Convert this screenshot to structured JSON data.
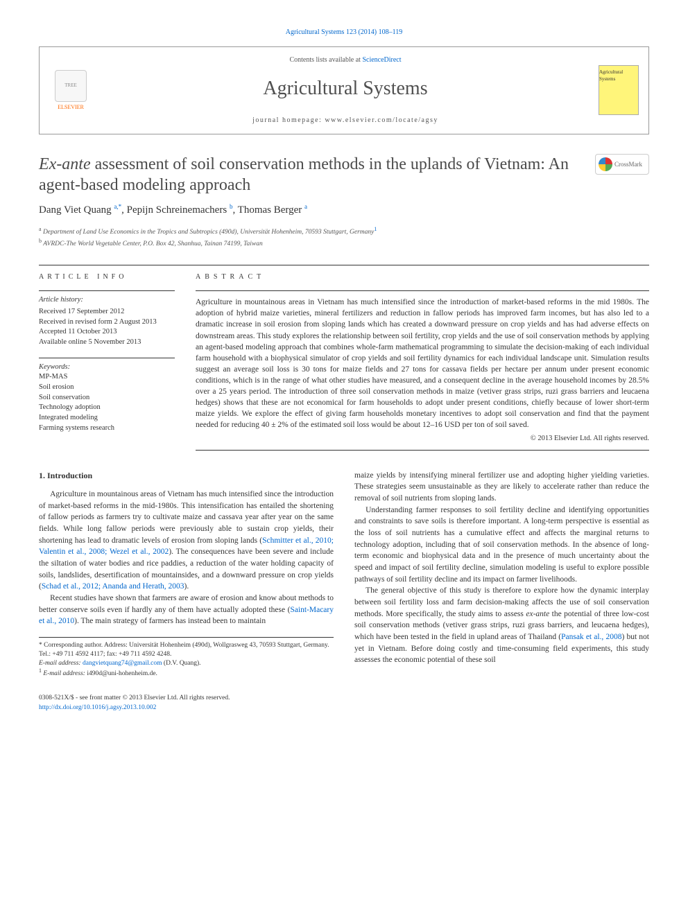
{
  "journal_ref": "Agricultural Systems 123 (2014) 108–119",
  "header": {
    "contents_prefix": "Contents lists available at ",
    "contents_link": "ScienceDirect",
    "journal_name": "Agricultural Systems",
    "homepage_prefix": "journal homepage: ",
    "homepage": "www.elsevier.com/locate/agsy",
    "elsevier_label": "ELSEVIER",
    "cover_label": "Agricultural Systems"
  },
  "crossmark_label": "CrossMark",
  "title_italic": "Ex-ante",
  "title_rest": " assessment of soil conservation methods in the uplands of Vietnam: An agent-based modeling approach",
  "authors": {
    "a1_name": "Dang Viet Quang",
    "a1_sup": "a,",
    "a1_star": "*",
    "a2_name": "Pepijn Schreinemachers",
    "a2_sup": "b",
    "a3_name": "Thomas Berger",
    "a3_sup": "a"
  },
  "affiliations": {
    "a": "Department of Land Use Economics in the Tropics and Subtropics (490d), Universität Hohenheim, 70593 Stuttgart, Germany",
    "a_end": "1",
    "b": "AVRDC-The World Vegetable Center, P.O. Box 42, Shanhua, Tainan 74199, Taiwan"
  },
  "info": {
    "heading": "ARTICLE INFO",
    "history_label": "Article history:",
    "received": "Received 17 September 2012",
    "revised": "Received in revised form 2 August 2013",
    "accepted": "Accepted 11 October 2013",
    "online": "Available online 5 November 2013",
    "keywords_label": "Keywords:",
    "kw1": "MP-MAS",
    "kw2": "Soil erosion",
    "kw3": "Soil conservation",
    "kw4": "Technology adoption",
    "kw5": "Integrated modeling",
    "kw6": "Farming systems research"
  },
  "abstract": {
    "heading": "ABSTRACT",
    "text": "Agriculture in mountainous areas in Vietnam has much intensified since the introduction of market-based reforms in the mid 1980s. The adoption of hybrid maize varieties, mineral fertilizers and reduction in fallow periods has improved farm incomes, but has also led to a dramatic increase in soil erosion from sloping lands which has created a downward pressure on crop yields and has had adverse effects on downstream areas. This study explores the relationship between soil fertility, crop yields and the use of soil conservation methods by applying an agent-based modeling approach that combines whole-farm mathematical programming to simulate the decision-making of each individual farm household with a biophysical simulator of crop yields and soil fertility dynamics for each individual landscape unit. Simulation results suggest an average soil loss is 30 tons for maize fields and 27 tons for cassava fields per hectare per annum under present economic conditions, which is in the range of what other studies have measured, and a consequent decline in the average household incomes by 28.5% over a 25 years period. The introduction of three soil conservation methods in maize (vetiver grass strips, ruzi grass barriers and leucaena hedges) shows that these are not economical for farm households to adopt under present conditions, chiefly because of lower short-term maize yields. We explore the effect of giving farm households monetary incentives to adopt soil conservation and find that the payment needed for reducing 40 ± 2% of the estimated soil loss would be about 12–16 USD per ton of soil saved.",
    "copyright": "© 2013 Elsevier Ltd. All rights reserved."
  },
  "body": {
    "intro_heading": "1. Introduction",
    "p1a": "Agriculture in mountainous areas of Vietnam has much intensified since the introduction of market-based reforms in the mid-1980s. This intensification has entailed the shortening of fallow periods as farmers try to cultivate maize and cassava year after year on the same fields. While long fallow periods were previously able to sustain crop yields, their shortening has lead to dramatic levels of erosion from sloping lands (",
    "p1_ref1": "Schmitter et al., 2010; Valentin et al., 2008; Wezel et al., 2002",
    "p1b": "). The consequences have been severe and include the siltation of water bodies and rice paddies, a reduction of the water holding capacity of soils, landslides, desertification of mountainsides, and a downward pressure on crop yields (",
    "p1_ref2": "Schad et al., 2012; Ananda and Herath, 2003",
    "p1c": ").",
    "p2a": "Recent studies have shown that farmers are aware of erosion and know about methods to better conserve soils even if hardly any of them have actually adopted these (",
    "p2_ref": "Saint-Macary et al., 2010",
    "p2b": "). The main strategy of farmers has instead been to maintain ",
    "p3": "maize yields by intensifying mineral fertilizer use and adopting higher yielding varieties. These strategies seem unsustainable as they are likely to accelerate rather than reduce the removal of soil nutrients from sloping lands.",
    "p4": "Understanding farmer responses to soil fertility decline and identifying opportunities and constraints to save soils is therefore important. A long-term perspective is essential as the loss of soil nutrients has a cumulative effect and affects the marginal returns to technology adoption, including that of soil conservation methods. In the absence of long-term economic and biophysical data and in the presence of much uncertainty about the speed and impact of soil fertility decline, simulation modeling is useful to explore possible pathways of soil fertility decline and its impact on farmer livelihoods.",
    "p5a": "The general objective of this study is therefore to explore how the dynamic interplay between soil fertility loss and farm decision-making affects the use of soil conservation methods. More specifically, the study aims to assess ",
    "p5_italic": "ex-ante",
    "p5b": " the potential of three low-cost soil conservation methods (vetiver grass strips, ruzi grass barriers, and leucaena hedges), which have been tested in the field in upland areas of Thailand (",
    "p5_ref": "Pansak et al., 2008",
    "p5c": ") but not yet in Vietnam. Before doing costly and time-consuming field experiments, this study assesses the economic potential of these soil "
  },
  "footnotes": {
    "corr_label": "* Corresponding author. Address: Universität Hohenheim (490d), Wollgrasweg 43, 70593 Stuttgart, Germany. Tel.: +49 711 4592 4117; fax: +49 711 4592 4248.",
    "email_label": "E-mail address: ",
    "email1": "dangvietquang74@gmail.com",
    "email1_owner": " (D.V. Quang).",
    "note1_sup": "1",
    "email_label2": " E-mail address: ",
    "email2": "i490d@uni-hohenheim.de."
  },
  "footer": {
    "line1": "0308-521X/$ - see front matter © 2013 Elsevier Ltd. All rights reserved.",
    "doi": "http://dx.doi.org/10.1016/j.agsy.2013.10.002"
  }
}
